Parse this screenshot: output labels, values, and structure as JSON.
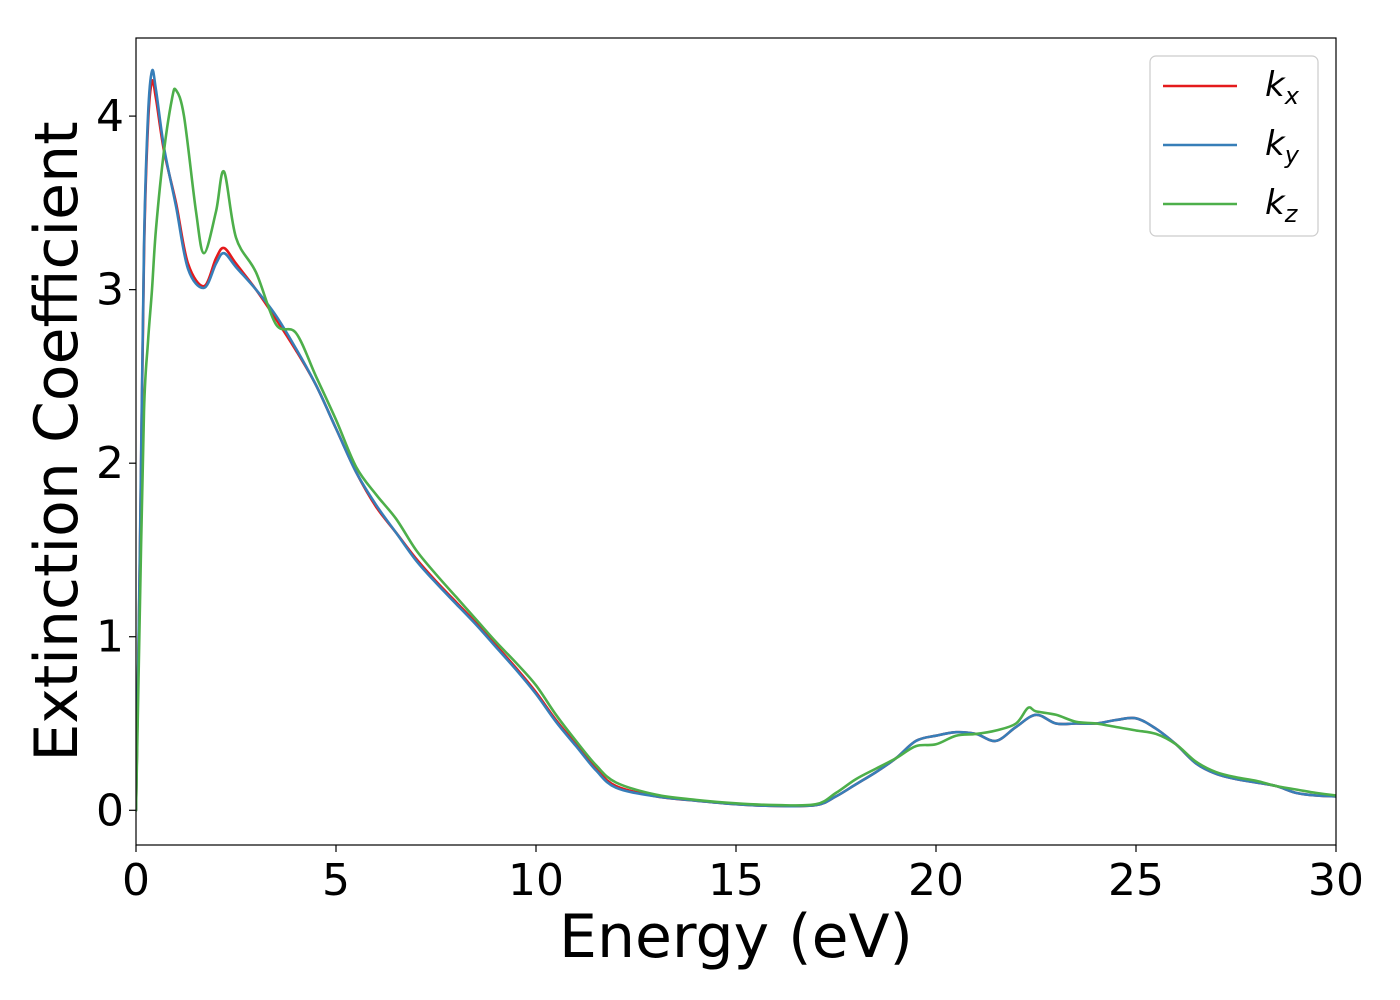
{
  "chart_data": {
    "type": "line",
    "xlabel": "Energy (eV)",
    "ylabel": "Extinction Coefficient",
    "xlim": [
      0,
      30
    ],
    "ylim": [
      -0.2,
      4.45
    ],
    "xticks": [
      0,
      5,
      10,
      15,
      20,
      25,
      30
    ],
    "yticks": [
      0,
      1,
      2,
      3,
      4
    ],
    "grid": false,
    "legend_position": "top-right",
    "series": [
      {
        "name": "k_x",
        "legend_base": "k",
        "legend_sub": "x",
        "color": "#e41a1c",
        "x": [
          0,
          0.1,
          0.2,
          0.3,
          0.4,
          0.5,
          0.7,
          1.0,
          1.3,
          1.7,
          2.0,
          2.2,
          2.5,
          3.0,
          3.5,
          4.0,
          4.5,
          5.0,
          5.5,
          6.0,
          6.5,
          7.0,
          7.5,
          8.0,
          8.5,
          9.0,
          9.5,
          10.0,
          10.5,
          11.0,
          11.5,
          12.0,
          13.0,
          14.0,
          15.0,
          16.0,
          17.0,
          17.5,
          18.0,
          18.5,
          19.0,
          19.5,
          20.0,
          20.5,
          21.0,
          21.5,
          22.0,
          22.5,
          23.0,
          23.5,
          24.0,
          24.5,
          25.0,
          25.5,
          26.0,
          26.5,
          27.0,
          27.5,
          28.0,
          28.5,
          29.0,
          29.5,
          30.0
        ],
        "y": [
          0,
          1.5,
          3.2,
          3.95,
          4.2,
          4.1,
          3.8,
          3.5,
          3.15,
          3.02,
          3.18,
          3.24,
          3.15,
          3.0,
          2.83,
          2.65,
          2.45,
          2.2,
          1.95,
          1.75,
          1.6,
          1.45,
          1.32,
          1.2,
          1.08,
          0.95,
          0.82,
          0.68,
          0.52,
          0.38,
          0.24,
          0.14,
          0.08,
          0.055,
          0.035,
          0.025,
          0.03,
          0.08,
          0.15,
          0.22,
          0.3,
          0.4,
          0.43,
          0.45,
          0.44,
          0.4,
          0.48,
          0.55,
          0.5,
          0.5,
          0.5,
          0.52,
          0.53,
          0.47,
          0.38,
          0.27,
          0.21,
          0.18,
          0.16,
          0.14,
          0.1,
          0.085,
          0.08
        ]
      },
      {
        "name": "k_y",
        "legend_base": "k",
        "legend_sub": "y",
        "color": "#377eb8",
        "x": [
          0,
          0.1,
          0.2,
          0.3,
          0.4,
          0.5,
          0.7,
          1.0,
          1.3,
          1.7,
          2.0,
          2.2,
          2.5,
          3.0,
          3.5,
          4.0,
          4.5,
          5.0,
          5.5,
          6.0,
          6.5,
          7.0,
          7.5,
          8.0,
          8.5,
          9.0,
          9.5,
          10.0,
          10.5,
          11.0,
          11.5,
          12.0,
          13.0,
          14.0,
          15.0,
          16.0,
          17.0,
          17.5,
          18.0,
          18.5,
          19.0,
          19.5,
          20.0,
          20.5,
          21.0,
          21.5,
          22.0,
          22.5,
          23.0,
          23.5,
          24.0,
          24.5,
          25.0,
          25.5,
          26.0,
          26.5,
          27.0,
          27.5,
          28.0,
          28.5,
          29.0,
          29.5,
          30.0
        ],
        "y": [
          0,
          1.55,
          3.25,
          4.0,
          4.26,
          4.15,
          3.82,
          3.48,
          3.12,
          3.01,
          3.15,
          3.21,
          3.13,
          3.0,
          2.85,
          2.66,
          2.45,
          2.2,
          1.95,
          1.76,
          1.6,
          1.44,
          1.31,
          1.19,
          1.07,
          0.94,
          0.81,
          0.67,
          0.51,
          0.37,
          0.23,
          0.13,
          0.08,
          0.055,
          0.035,
          0.025,
          0.03,
          0.08,
          0.15,
          0.22,
          0.3,
          0.4,
          0.43,
          0.45,
          0.44,
          0.4,
          0.48,
          0.55,
          0.5,
          0.5,
          0.5,
          0.52,
          0.53,
          0.47,
          0.38,
          0.27,
          0.21,
          0.18,
          0.16,
          0.14,
          0.1,
          0.085,
          0.08
        ]
      },
      {
        "name": "k_z",
        "legend_base": "k",
        "legend_sub": "z",
        "color": "#4daf4a",
        "x": [
          0,
          0.1,
          0.2,
          0.3,
          0.4,
          0.5,
          0.7,
          0.9,
          1.0,
          1.2,
          1.5,
          1.7,
          2.0,
          2.2,
          2.5,
          3.0,
          3.5,
          4.0,
          4.5,
          5.0,
          5.5,
          6.0,
          6.5,
          7.0,
          7.5,
          8.0,
          8.5,
          9.0,
          9.5,
          10.0,
          10.5,
          11.0,
          11.5,
          12.0,
          13.0,
          14.0,
          15.0,
          16.0,
          17.0,
          17.5,
          18.0,
          18.5,
          19.0,
          19.5,
          20.0,
          20.5,
          21.0,
          21.5,
          22.0,
          22.3,
          22.5,
          23.0,
          23.5,
          24.0,
          24.5,
          25.0,
          25.5,
          26.0,
          26.5,
          27.0,
          27.5,
          28.0,
          28.5,
          29.0,
          29.5,
          30.0
        ],
        "y": [
          0,
          1.2,
          2.3,
          2.7,
          3.0,
          3.35,
          3.8,
          4.1,
          4.15,
          4.0,
          3.45,
          3.21,
          3.45,
          3.68,
          3.3,
          3.1,
          2.8,
          2.75,
          2.5,
          2.25,
          1.98,
          1.82,
          1.68,
          1.5,
          1.36,
          1.23,
          1.1,
          0.97,
          0.85,
          0.72,
          0.55,
          0.4,
          0.26,
          0.16,
          0.09,
          0.06,
          0.04,
          0.03,
          0.035,
          0.1,
          0.18,
          0.24,
          0.3,
          0.37,
          0.38,
          0.43,
          0.44,
          0.46,
          0.5,
          0.59,
          0.57,
          0.55,
          0.51,
          0.5,
          0.48,
          0.46,
          0.44,
          0.38,
          0.28,
          0.22,
          0.19,
          0.17,
          0.14,
          0.12,
          0.1,
          0.085
        ]
      }
    ]
  }
}
